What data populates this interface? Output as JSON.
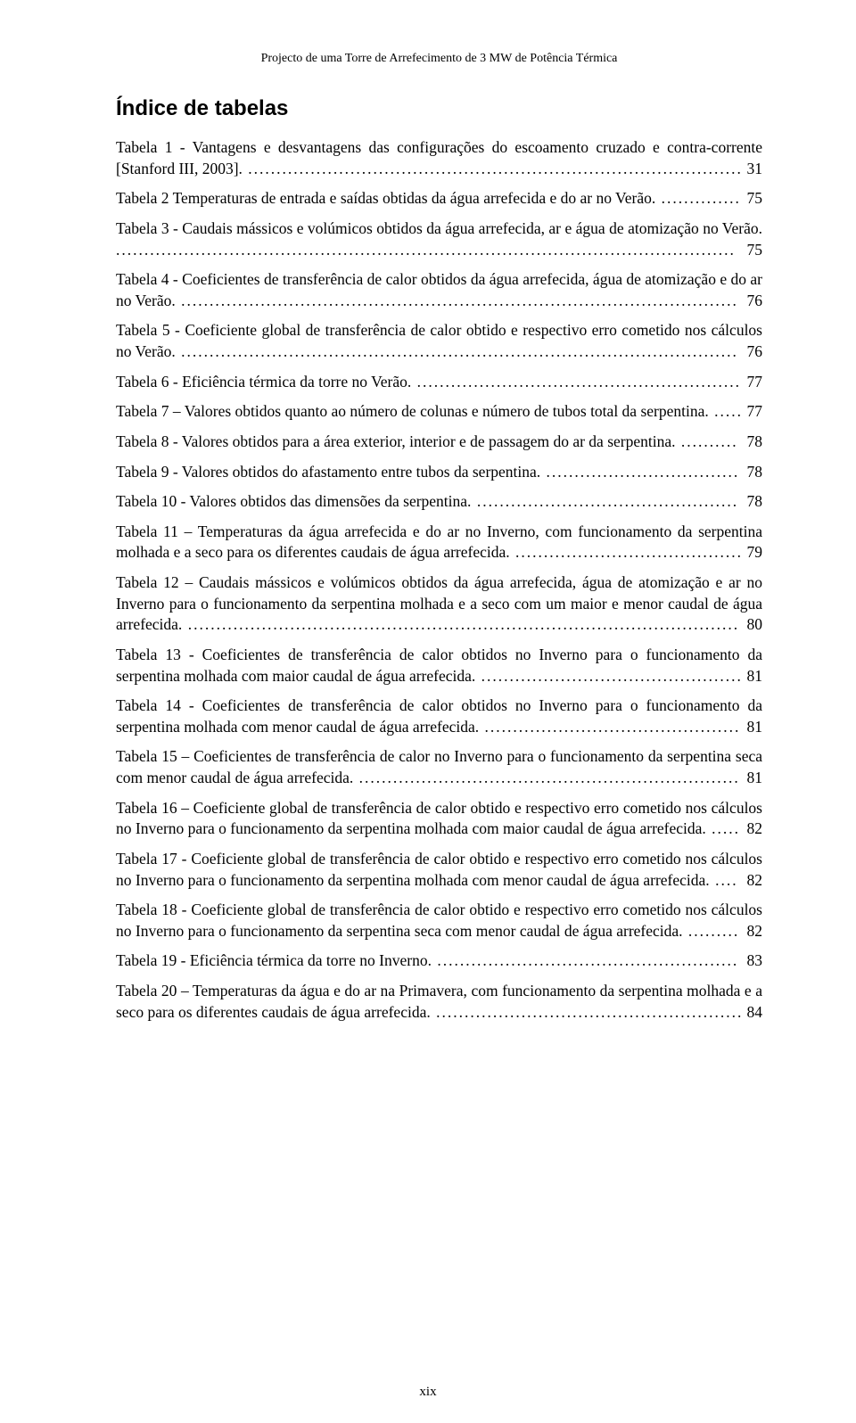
{
  "running_header": "Projecto de uma Torre de Arrefecimento de 3 MW de Potência Térmica",
  "section_title": "Índice de tabelas",
  "page_number_label": "xix",
  "entries": [
    {
      "text": "Tabela 1 - Vantagens e desvantagens das configurações do escoamento cruzado e contra-corrente [Stanford III, 2003].",
      "page": "31"
    },
    {
      "text": "Tabela 2  Temperaturas de entrada e saídas obtidas da água arrefecida e do ar no Verão.",
      "page": "75"
    },
    {
      "text": "Tabela 3 - Caudais mássicos e volúmicos obtidos da água arrefecida, ar e água de atomização no Verão.",
      "page": "75"
    },
    {
      "text": "Tabela 4 - Coeficientes de transferência de calor obtidos da água arrefecida, água de atomização e do ar no Verão.",
      "page": "76"
    },
    {
      "text": "Tabela 5 - Coeficiente global de transferência de calor obtido e respectivo erro cometido nos cálculos no Verão.",
      "page": "76"
    },
    {
      "text": "Tabela 6 - Eficiência térmica da torre no Verão.",
      "page": "77"
    },
    {
      "text": "Tabela 7 – Valores obtidos quanto ao número de colunas e número de tubos total da serpentina.",
      "page": "77"
    },
    {
      "text": "Tabela 8 - Valores obtidos para a área exterior, interior e de passagem do ar da serpentina.",
      "page": "78"
    },
    {
      "text": "Tabela 9 - Valores obtidos do afastamento entre tubos da serpentina.",
      "page": "78"
    },
    {
      "text": "Tabela 10 - Valores obtidos das dimensões da serpentina.",
      "page": "78"
    },
    {
      "text": "Tabela 11 – Temperaturas da água arrefecida e do ar no Inverno, com funcionamento da serpentina molhada e a seco para os diferentes caudais de água arrefecida.",
      "page": "79"
    },
    {
      "text": "Tabela 12 – Caudais mássicos e volúmicos obtidos da água arrefecida, água de atomização e ar no Inverno para o funcionamento da serpentina molhada e a seco com um maior e menor caudal de água arrefecida.",
      "page": "80"
    },
    {
      "text": "Tabela 13 - Coeficientes de transferência de calor obtidos no Inverno para o funcionamento da serpentina molhada com maior caudal de água arrefecida.",
      "page": "81"
    },
    {
      "text": "Tabela 14 - Coeficientes de transferência de calor obtidos no Inverno para o funcionamento da serpentina molhada com menor caudal de água arrefecida.",
      "page": "81"
    },
    {
      "text": "Tabela 15 – Coeficientes de transferência de calor no Inverno para o funcionamento da serpentina seca com menor caudal de água arrefecida.",
      "page": "81"
    },
    {
      "text": "Tabela 16 – Coeficiente global de transferência de calor obtido e respectivo erro cometido nos cálculos no Inverno para o funcionamento da serpentina molhada com maior caudal de água arrefecida.",
      "page": "82"
    },
    {
      "text": "Tabela 17 - Coeficiente global de transferência de calor obtido e respectivo erro cometido nos cálculos no Inverno para o funcionamento da serpentina molhada com menor caudal de água arrefecida.",
      "page": "82"
    },
    {
      "text": "Tabela 18 - Coeficiente global de transferência de calor obtido e respectivo erro cometido nos cálculos no Inverno para o funcionamento da serpentina seca com menor caudal de água arrefecida.",
      "page": "82"
    },
    {
      "text": "Tabela 19 - Eficiência térmica da torre no Inverno.",
      "page": "83"
    },
    {
      "text": "Tabela 20 – Temperaturas da água e do ar na Primavera, com funcionamento da serpentina molhada e a seco para os diferentes caudais de água arrefecida.",
      "page": "84"
    }
  ]
}
